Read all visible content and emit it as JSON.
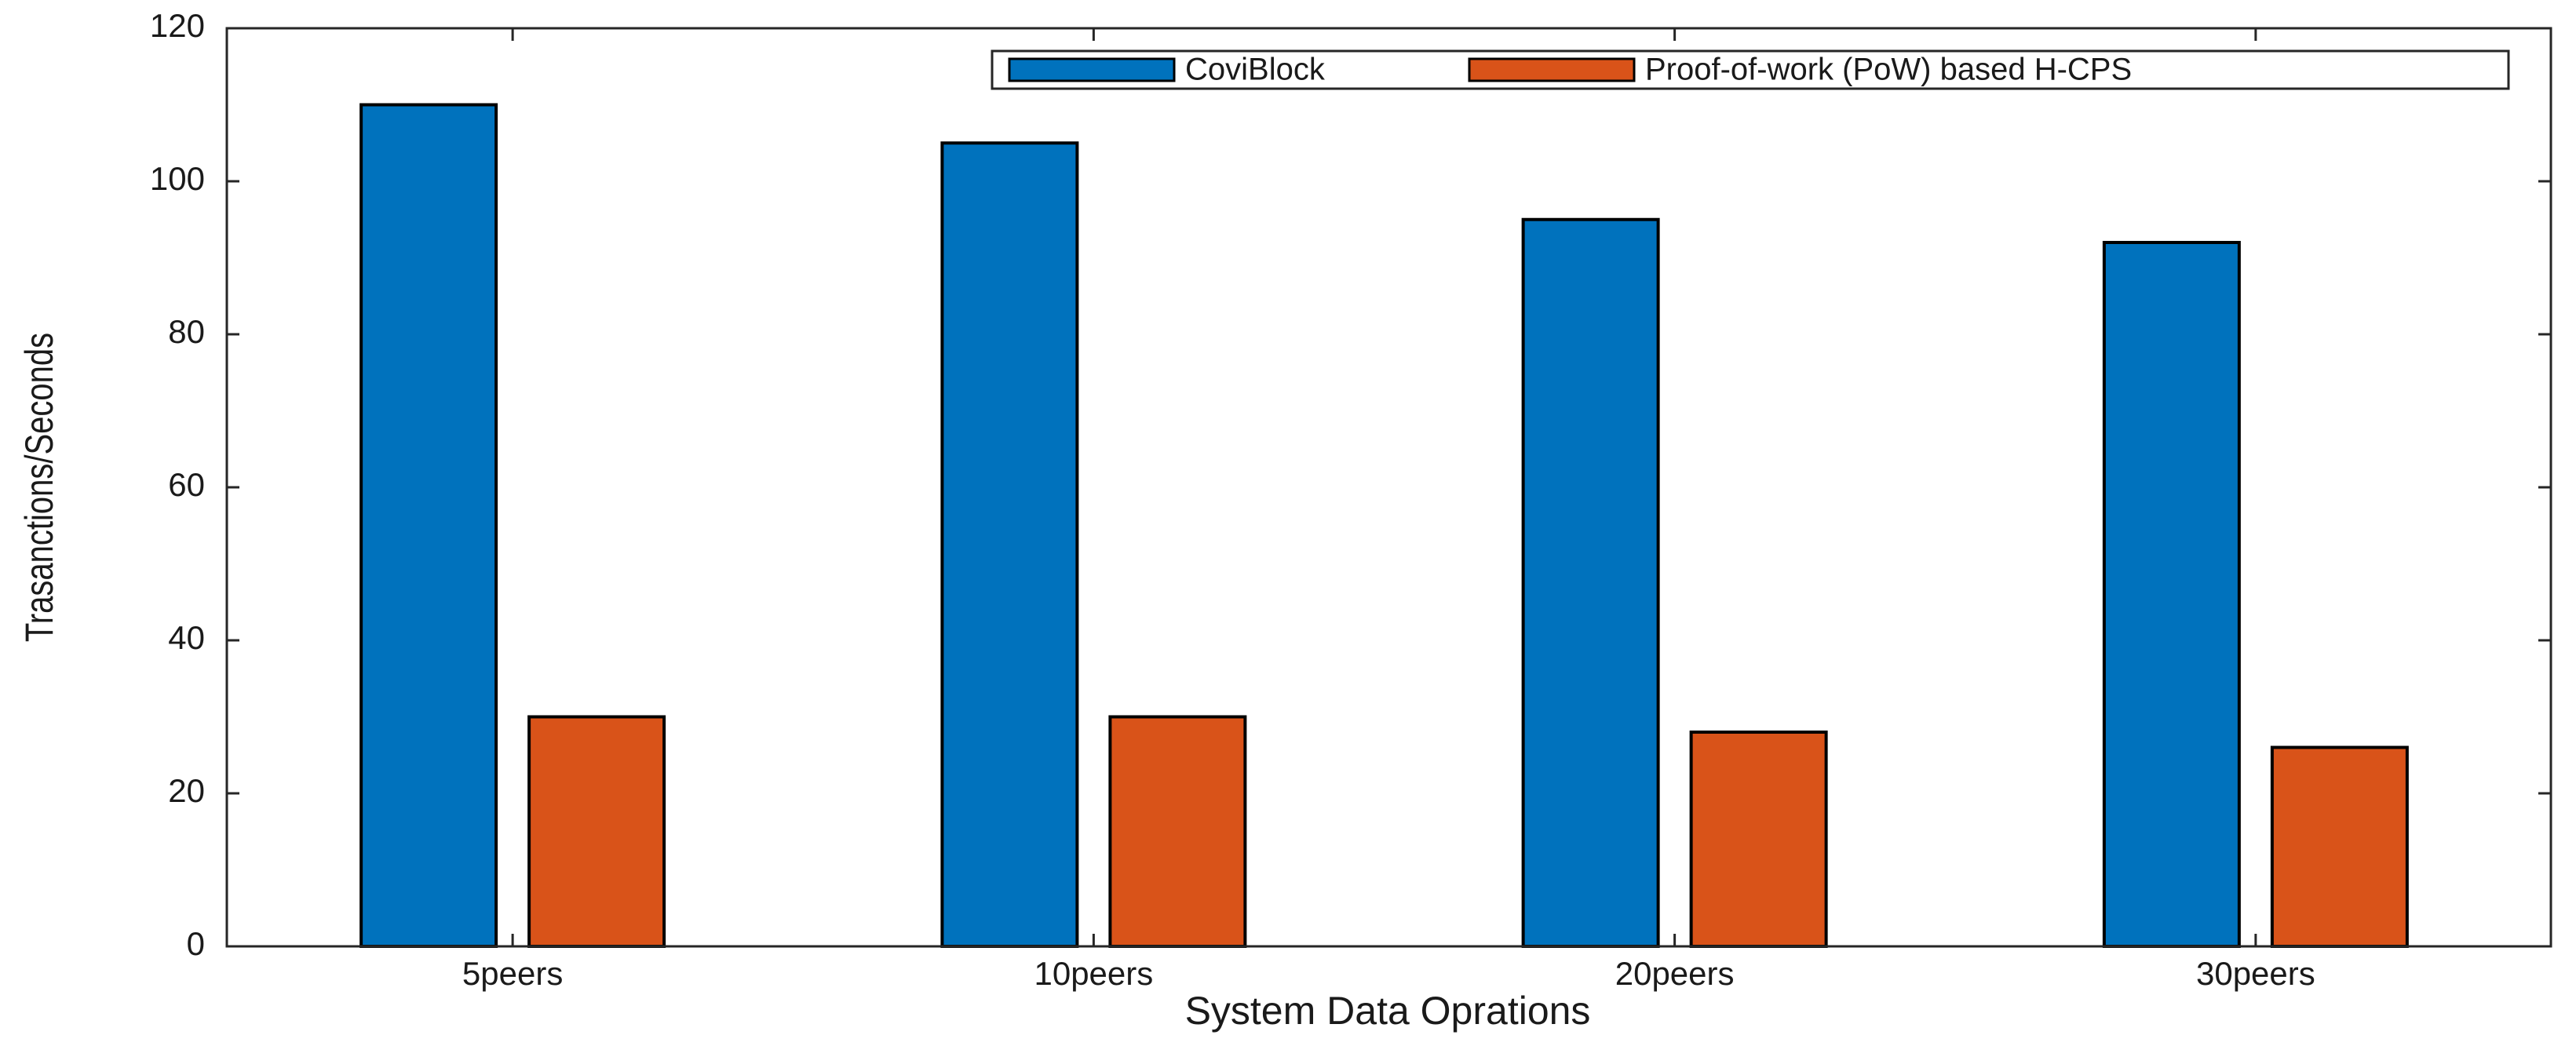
{
  "chart_data": {
    "type": "bar",
    "categories": [
      "5peers",
      "10peers",
      "20peers",
      "30peers"
    ],
    "series": [
      {
        "name": "CoviBlock",
        "color": "#0072bd",
        "values": [
          110,
          105,
          95,
          92
        ]
      },
      {
        "name": "Proof-of-work (PoW) based H-CPS",
        "color": "#d95319",
        "values": [
          30,
          30,
          28,
          26
        ]
      }
    ],
    "xlabel": "System Data Oprations",
    "ylabel": "Trasanctions/Seconds",
    "ylim": [
      0,
      120
    ],
    "yticks": [
      0,
      20,
      40,
      60,
      80,
      100,
      120
    ],
    "grid": false,
    "legend": "top-right"
  }
}
